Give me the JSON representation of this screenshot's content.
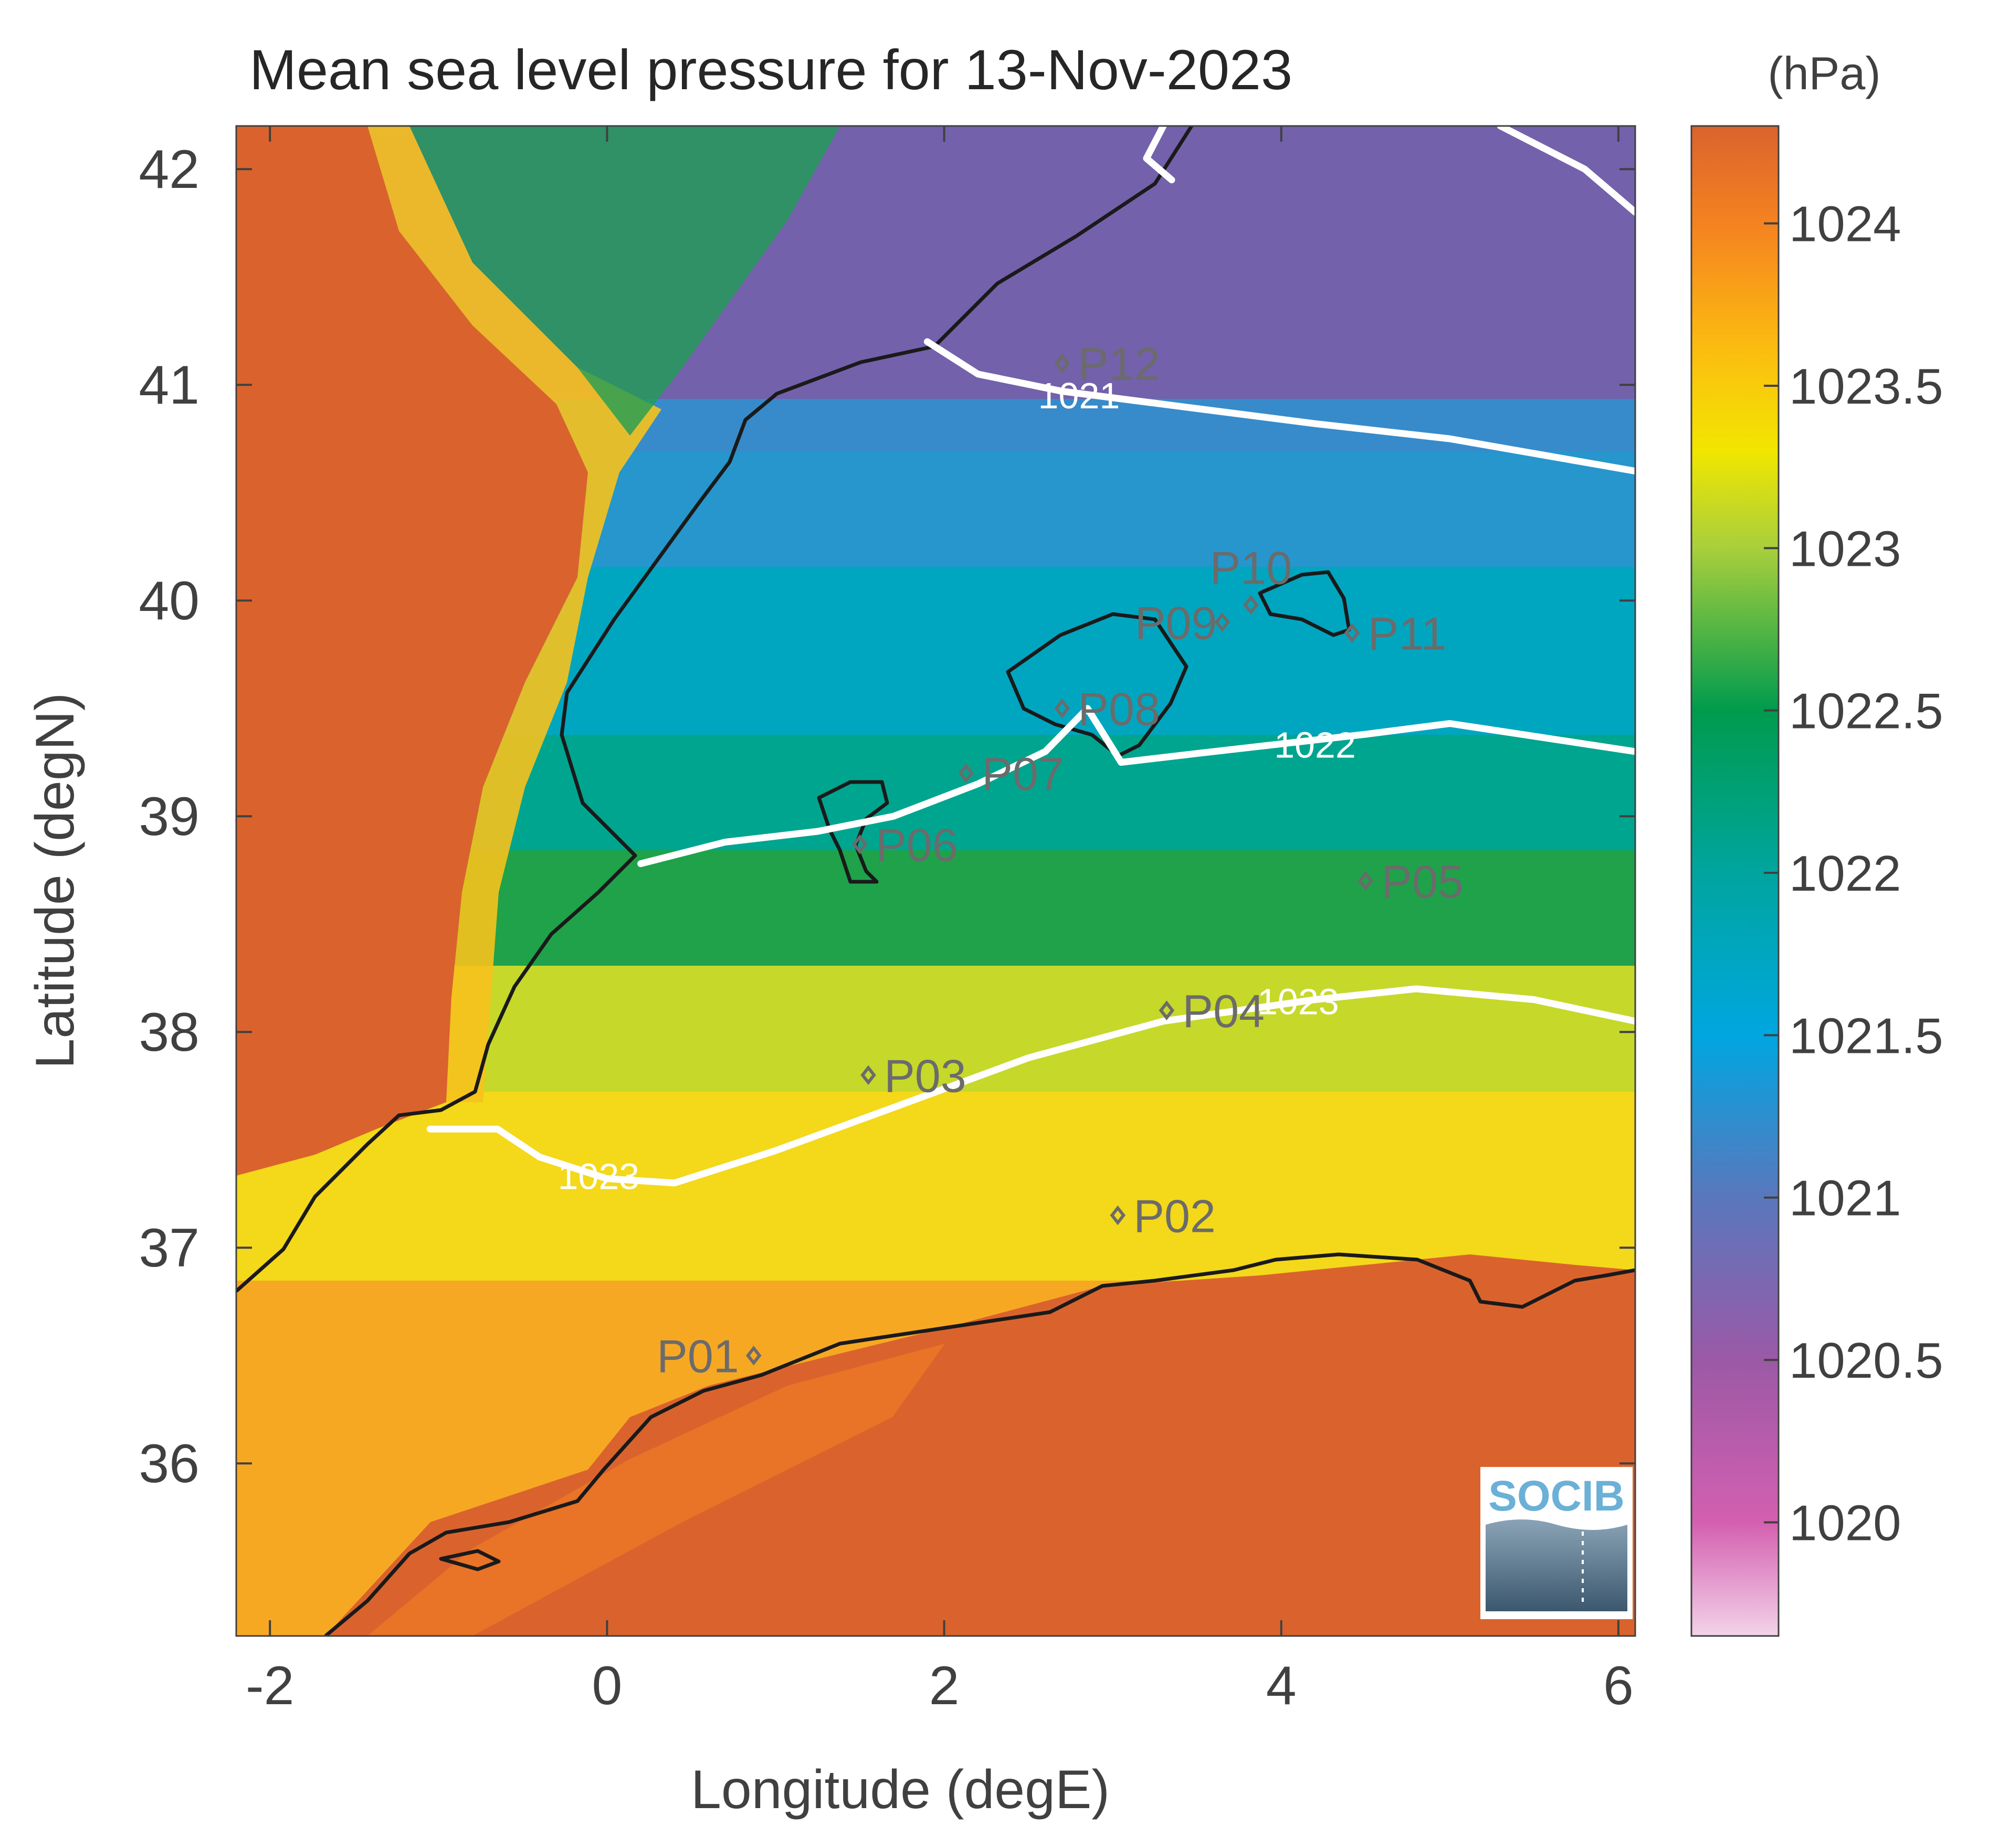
{
  "chart_data": {
    "type": "heatmap",
    "title": "Mean sea level pressure for 13-Nov-2023",
    "xlabel": "Longitude (degE)",
    "ylabel": "Latitude (degN)",
    "xlim": [
      -2.2,
      6.1
    ],
    "ylim": [
      35.2,
      42.2
    ],
    "x_ticks": [
      -2,
      0,
      2,
      4,
      6
    ],
    "y_ticks": [
      36,
      37,
      38,
      39,
      40,
      41,
      42
    ],
    "colorbar": {
      "unit": "(hPa)",
      "range": [
        1019.65,
        1024.3
      ],
      "ticks": [
        1020,
        1020.5,
        1021,
        1021.5,
        1022,
        1022.5,
        1023,
        1023.5,
        1024
      ],
      "colors": [
        {
          "value": 1019.65,
          "color": "#f3d3e9"
        },
        {
          "value": 1020.0,
          "color": "#d45fb0"
        },
        {
          "value": 1020.5,
          "color": "#9b59a6"
        },
        {
          "value": 1021.0,
          "color": "#5a77bd"
        },
        {
          "value": 1021.5,
          "color": "#00a6e0"
        },
        {
          "value": 1022.0,
          "color": "#00a59f"
        },
        {
          "value": 1022.5,
          "color": "#009b4d"
        },
        {
          "value": 1023.0,
          "color": "#a8cf3c"
        },
        {
          "value": 1023.3,
          "color": "#f2e600"
        },
        {
          "value": 1023.6,
          "color": "#fbbe10"
        },
        {
          "value": 1024.0,
          "color": "#f58220"
        },
        {
          "value": 1024.3,
          "color": "#da632d"
        }
      ]
    },
    "contours": [
      {
        "label": "1021",
        "label_at": [
          2.8,
          40.95
        ],
        "points": [
          [
            1.9,
            41.2
          ],
          [
            2.2,
            41.05
          ],
          [
            2.7,
            40.97
          ],
          [
            3.4,
            40.9
          ],
          [
            4.2,
            40.82
          ],
          [
            5.0,
            40.75
          ],
          [
            6.1,
            40.6
          ]
        ]
      },
      {
        "label": "1021",
        "label_at": null,
        "points": [
          [
            3.3,
            42.2
          ],
          [
            3.2,
            42.05
          ],
          [
            3.35,
            41.95
          ]
        ]
      },
      {
        "label": "1021",
        "label_at": null,
        "points": [
          [
            5.3,
            42.2
          ],
          [
            5.8,
            42.0
          ],
          [
            6.1,
            41.8
          ]
        ]
      },
      {
        "label": "1022",
        "label_at": [
          4.2,
          39.33
        ],
        "points": [
          [
            0.2,
            38.78
          ],
          [
            0.7,
            38.88
          ],
          [
            1.25,
            38.93
          ],
          [
            1.7,
            39.0
          ],
          [
            2.2,
            39.15
          ],
          [
            2.6,
            39.3
          ],
          [
            2.85,
            39.5
          ],
          [
            3.05,
            39.25
          ],
          [
            3.6,
            39.3
          ],
          [
            4.5,
            39.38
          ],
          [
            5.0,
            39.43
          ],
          [
            6.1,
            39.3
          ]
        ]
      },
      {
        "label": "1023",
        "label_at": [
          -0.05,
          37.33
        ],
        "points": [
          [
            -1.05,
            37.55
          ],
          [
            -0.65,
            37.55
          ],
          [
            -0.4,
            37.42
          ],
          [
            0.0,
            37.32
          ],
          [
            0.4,
            37.3
          ],
          [
            1.0,
            37.45
          ],
          [
            1.7,
            37.65
          ],
          [
            2.5,
            37.88
          ],
          [
            3.3,
            38.05
          ],
          [
            4.2,
            38.15
          ],
          [
            4.8,
            38.2
          ],
          [
            5.5,
            38.15
          ],
          [
            6.1,
            38.05
          ]
        ]
      },
      {
        "label": "1023",
        "label_at": [
          4.1,
          38.14
        ],
        "points": []
      }
    ],
    "stations": [
      {
        "name": "P01",
        "lon": 0.87,
        "lat": 36.5
      },
      {
        "name": "P02",
        "lon": 3.03,
        "lat": 37.15
      },
      {
        "name": "P03",
        "lon": 1.55,
        "lat": 37.8
      },
      {
        "name": "P04",
        "lon": 3.32,
        "lat": 38.1
      },
      {
        "name": "P05",
        "lon": 4.5,
        "lat": 38.7
      },
      {
        "name": "P06",
        "lon": 1.5,
        "lat": 38.87
      },
      {
        "name": "P07",
        "lon": 2.13,
        "lat": 39.2
      },
      {
        "name": "P08",
        "lon": 2.7,
        "lat": 39.5
      },
      {
        "name": "P09",
        "lon": 3.65,
        "lat": 39.9
      },
      {
        "name": "P10",
        "lon": 3.82,
        "lat": 39.98
      },
      {
        "name": "P11",
        "lon": 4.42,
        "lat": 39.85
      },
      {
        "name": "P12",
        "lon": 2.7,
        "lat": 41.1
      }
    ],
    "grid": false,
    "legend": "colorbar-right"
  },
  "logo": {
    "text": "SOCIB"
  }
}
